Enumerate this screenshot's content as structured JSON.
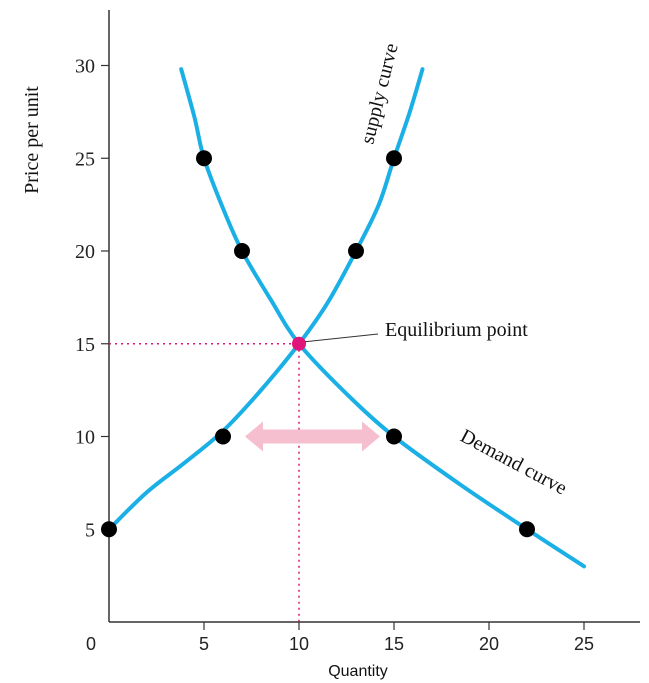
{
  "colors": {
    "curve": "#1ab0e6",
    "point": "#000000",
    "equilibrium": "#e0157a",
    "guide": "#e0157a",
    "arrow": "#f5bfcf",
    "axis": "#333333",
    "highlight_tick": "#e0157a"
  },
  "chart_data": {
    "type": "line",
    "title": "",
    "xlabel": "Quantity",
    "ylabel": "Price per unit",
    "xlim": [
      0,
      28
    ],
    "ylim": [
      0,
      32
    ],
    "x_ticks": [
      "0",
      "5",
      "10",
      "15",
      "20",
      "25"
    ],
    "y_ticks": [
      "5",
      "10",
      "15",
      "20",
      "25",
      "30"
    ],
    "highlight_x_tick": "10",
    "grid": false,
    "series": [
      {
        "name": "supply curve",
        "curve": [
          [
            0,
            5
          ],
          [
            2,
            7
          ],
          [
            4,
            8.6
          ],
          [
            6,
            10.3
          ],
          [
            8,
            12.5
          ],
          [
            10,
            15
          ],
          [
            11.5,
            17.2
          ],
          [
            13,
            20
          ],
          [
            14.2,
            22.5
          ],
          [
            15,
            25
          ],
          [
            15.8,
            27.4
          ],
          [
            16.5,
            29.8
          ]
        ],
        "points": [
          [
            0,
            5
          ],
          [
            6,
            10
          ],
          [
            13,
            20
          ],
          [
            15,
            25
          ]
        ]
      },
      {
        "name": "Demand curve",
        "curve": [
          [
            3.8,
            29.8
          ],
          [
            4.5,
            27.2
          ],
          [
            5,
            25
          ],
          [
            6,
            22.3
          ],
          [
            7,
            20
          ],
          [
            8.5,
            17.4
          ],
          [
            10,
            15
          ],
          [
            12.5,
            12.3
          ],
          [
            15,
            10
          ],
          [
            18.5,
            7.4
          ],
          [
            22,
            5
          ],
          [
            25,
            3
          ]
        ],
        "points": [
          [
            5,
            25
          ],
          [
            7,
            20
          ],
          [
            15,
            10
          ],
          [
            22,
            5
          ]
        ]
      }
    ],
    "equilibrium": {
      "x": 10,
      "y": 15
    },
    "annotations": {
      "equilibrium_label": "Equilibrium point",
      "supply_label": "supply curve",
      "demand_label": "Demand curve"
    },
    "double_arrow": {
      "y": 10,
      "x_from": 6,
      "x_to": 15
    }
  }
}
